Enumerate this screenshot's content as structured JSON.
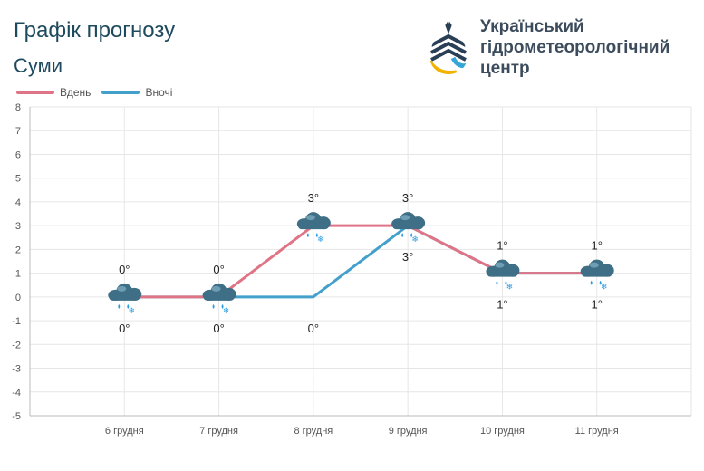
{
  "header": {
    "title": "Графік прогнозу",
    "city": "Суми",
    "org_line1": "Український",
    "org_line2": "гідрометеорологічний",
    "org_line3": "центр"
  },
  "colors": {
    "day": "#e07487",
    "night": "#42a0cb",
    "text": "#1e4a5e",
    "grid": "#e6e6e6",
    "cloud": "#3e6f86",
    "drop": "#2c9be0"
  },
  "icons": [
    "logo-drop-icon",
    "rain-snow-cloud-icon"
  ],
  "chart_data": {
    "type": "line",
    "categories": [
      "6 грудня",
      "7 грудня",
      "8 грудня",
      "9 грудня",
      "10 грудня",
      "11 грудня"
    ],
    "series": [
      {
        "name": "Вдень",
        "values": [
          0,
          0,
          3,
          3,
          1,
          1
        ],
        "labels": [
          "0°",
          "0°",
          "3°",
          "3°",
          "1°",
          "1°"
        ]
      },
      {
        "name": "Вночі",
        "values": [
          0,
          0,
          0,
          3,
          1,
          1
        ],
        "labels": [
          "0°",
          "0°",
          "0°",
          "3°",
          "1°",
          "1°"
        ]
      }
    ],
    "ylim": [
      -5,
      8
    ],
    "yticks": [
      8,
      7,
      6,
      5,
      4,
      3,
      2,
      1,
      0,
      -1,
      -2,
      -3,
      -4,
      -5
    ],
    "grid": true,
    "legend": "top-left"
  }
}
